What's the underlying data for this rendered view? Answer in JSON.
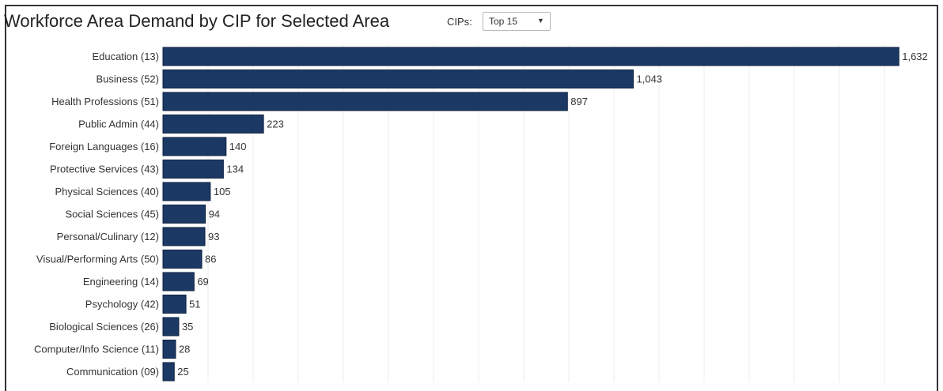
{
  "header": {
    "title": "Workforce Area Demand by CIP for Selected Area",
    "cips_label": "CIPs:",
    "cips_selected": "Top 15"
  },
  "colors": {
    "bar_fill": "#1c3966",
    "bar_stroke": "#0d1f3c",
    "grid": "#ececec",
    "frame": "#333333"
  },
  "chart_data": {
    "type": "bar",
    "orientation": "horizontal",
    "title": "Workforce Area Demand by CIP for Selected Area",
    "categories": [
      "Education (13)",
      "Business (52)",
      "Health Professions (51)",
      "Public Admin (44)",
      "Foreign Languages (16)",
      "Protective Services (43)",
      "Physical Sciences (40)",
      "Social Sciences (45)",
      "Personal/Culinary (12)",
      "Visual/Performing Arts (50)",
      "Engineering (14)",
      "Psychology (42)",
      "Biological Sciences (26)",
      "Computer/Info Science (11)",
      "Communication (09)"
    ],
    "values": [
      1632,
      1043,
      897,
      223,
      140,
      134,
      105,
      94,
      93,
      86,
      69,
      51,
      35,
      28,
      25
    ],
    "value_labels": [
      "1,632",
      "1,043",
      "897",
      "223",
      "140",
      "134",
      "105",
      "94",
      "93",
      "86",
      "69",
      "51",
      "35",
      "28",
      "25"
    ],
    "xlim": [
      0,
      1700
    ],
    "grid": true,
    "legend": "none"
  }
}
